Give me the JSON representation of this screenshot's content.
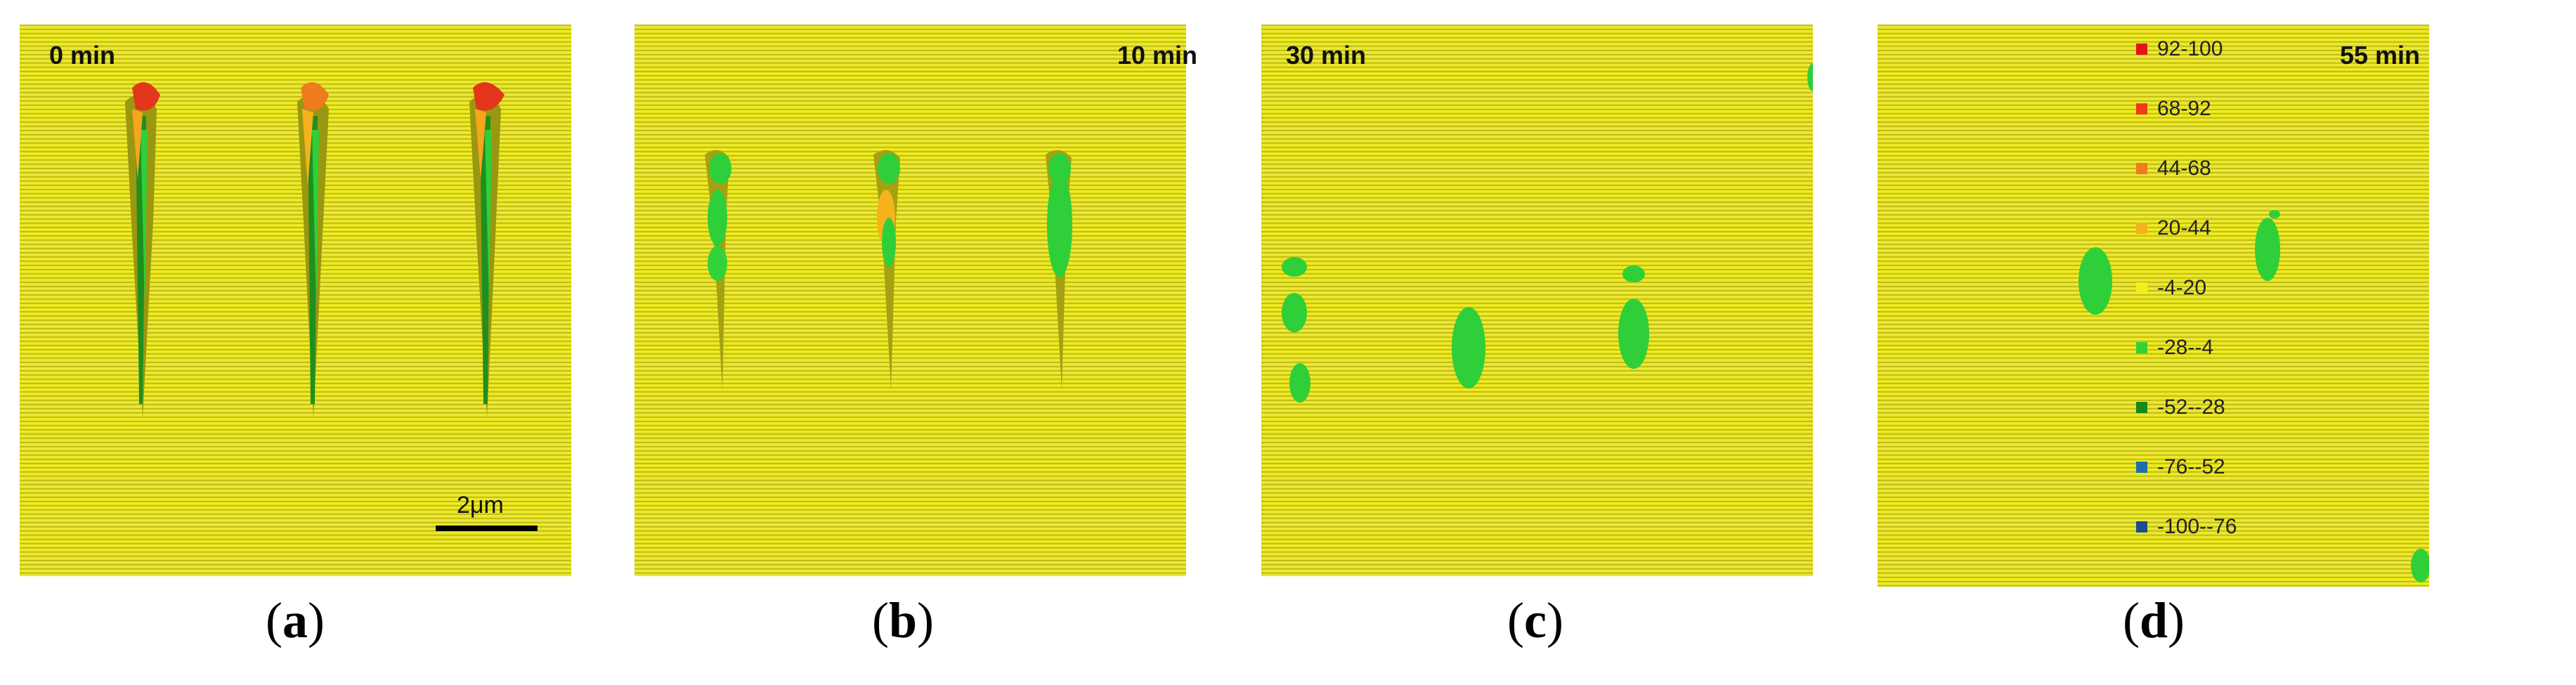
{
  "panels": [
    {
      "time": "0 min",
      "caption_letter": "a"
    },
    {
      "time": "10 min",
      "caption_letter": "b"
    },
    {
      "time": "30 min",
      "caption_letter": "c"
    },
    {
      "time": "55 min",
      "caption_letter": "d"
    }
  ],
  "scale_bar": {
    "label": "2μm"
  },
  "legend": {
    "items": [
      {
        "label": "92-100",
        "color": "#e0141a"
      },
      {
        "label": "68-92",
        "color": "#f03a1a"
      },
      {
        "label": "44-68",
        "color": "#f07a1e"
      },
      {
        "label": "20-44",
        "color": "#f5b21c"
      },
      {
        "label": "-4-20",
        "color": "#f4ef1c"
      },
      {
        "label": "-28--4",
        "color": "#34d23a"
      },
      {
        "label": "-52--28",
        "color": "#15891a"
      },
      {
        "label": "-76--52",
        "color": "#1d6fa8"
      },
      {
        "label": "-100--76",
        "color": "#1a4f8a"
      }
    ]
  },
  "surface_color": "#e6e41e"
}
